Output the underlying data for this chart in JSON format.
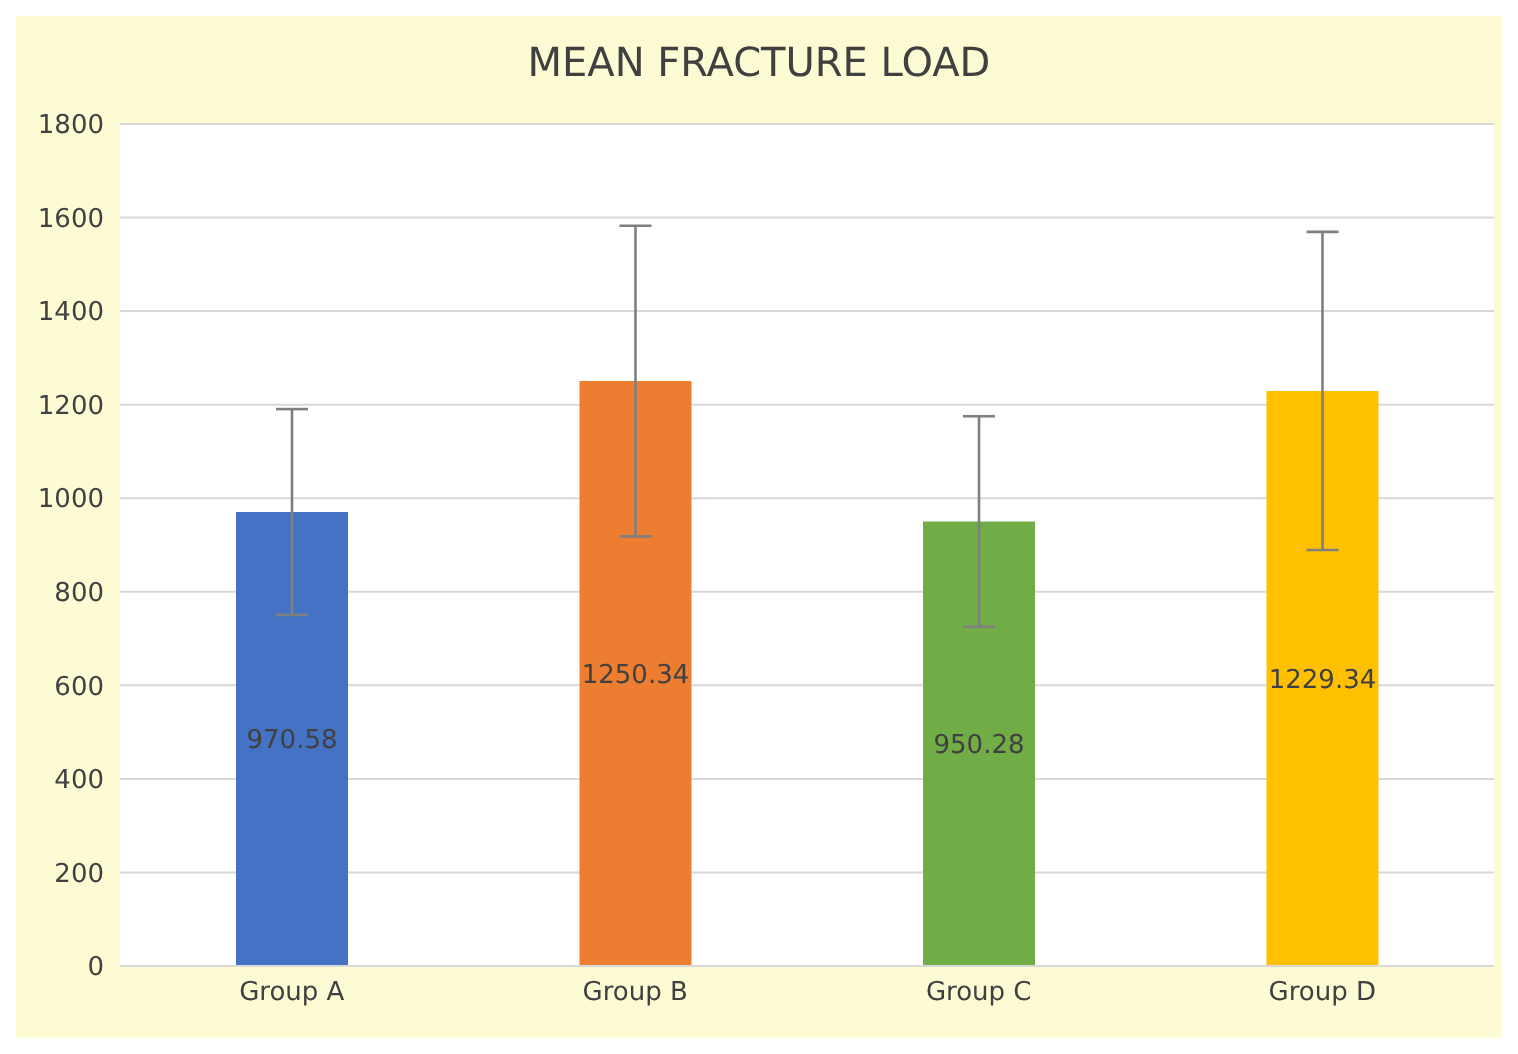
{
  "chart_data": {
    "type": "bar",
    "title": "MEAN FRACTURE LOAD",
    "categories": [
      "Group A",
      "Group B",
      "Group C",
      "Group D"
    ],
    "values": [
      970.58,
      1250.34,
      950.28,
      1229.34
    ],
    "colors": [
      "#4472c4",
      "#ed7d31",
      "#70ad47",
      "#ffc000"
    ],
    "errors": [
      220,
      332,
      225,
      340
    ],
    "data_labels": true,
    "ylim": [
      0,
      1800
    ],
    "yticks": [
      0,
      200,
      400,
      600,
      800,
      1000,
      1200,
      1400,
      1600,
      1800
    ],
    "grid": "y"
  }
}
